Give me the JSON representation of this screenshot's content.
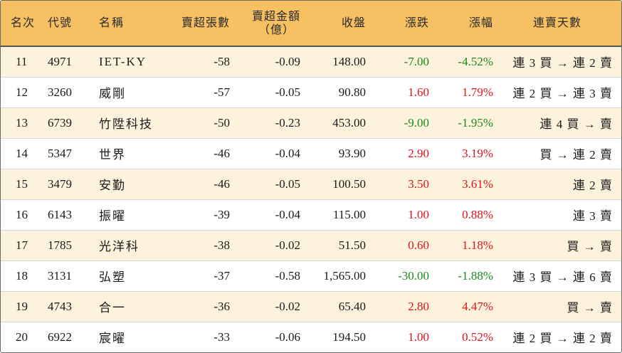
{
  "headers": {
    "rank": "名次",
    "code": "代號",
    "name": "名稱",
    "net_sell_lots": "賣超張數",
    "net_sell_amount_line1": "賣超金額",
    "net_sell_amount_line2": "（億）",
    "close": "收盤",
    "change": "漲跌",
    "change_pct": "漲幅",
    "streak": "連賣天數"
  },
  "colors": {
    "header_bg": "#f7c163",
    "row_alt_bg": "#fdf3dc",
    "up": "#e0141e",
    "down": "#1a8a1a"
  },
  "rows": [
    {
      "rank": "11",
      "code": "4971",
      "name": "IET-KY",
      "lots": "-58",
      "amount": "-0.09",
      "close": "148.00",
      "change": "-7.00",
      "pct": "-4.52%",
      "streak": "連 3 買 → 連 2 賣",
      "dir": "down"
    },
    {
      "rank": "12",
      "code": "3260",
      "name": "威剛",
      "lots": "-57",
      "amount": "-0.05",
      "close": "90.80",
      "change": "1.60",
      "pct": "1.79%",
      "streak": "連 2 買 → 連 3 賣",
      "dir": "up"
    },
    {
      "rank": "13",
      "code": "6739",
      "name": "竹陞科技",
      "lots": "-50",
      "amount": "-0.23",
      "close": "453.00",
      "change": "-9.00",
      "pct": "-1.95%",
      "streak": "連 4 買 → 賣",
      "dir": "down"
    },
    {
      "rank": "14",
      "code": "5347",
      "name": "世界",
      "lots": "-46",
      "amount": "-0.04",
      "close": "93.90",
      "change": "2.90",
      "pct": "3.19%",
      "streak": "買 → 連 2 賣",
      "dir": "up"
    },
    {
      "rank": "15",
      "code": "3479",
      "name": "安勤",
      "lots": "-46",
      "amount": "-0.05",
      "close": "100.50",
      "change": "3.50",
      "pct": "3.61%",
      "streak": "連 2 賣",
      "dir": "up"
    },
    {
      "rank": "16",
      "code": "6143",
      "name": "振曜",
      "lots": "-39",
      "amount": "-0.04",
      "close": "115.00",
      "change": "1.00",
      "pct": "0.88%",
      "streak": "連 3 賣",
      "dir": "up"
    },
    {
      "rank": "17",
      "code": "1785",
      "name": "光洋科",
      "lots": "-38",
      "amount": "-0.02",
      "close": "51.50",
      "change": "0.60",
      "pct": "1.18%",
      "streak": "買 → 賣",
      "dir": "up"
    },
    {
      "rank": "18",
      "code": "3131",
      "name": "弘塑",
      "lots": "-37",
      "amount": "-0.58",
      "close": "1,565.00",
      "change": "-30.00",
      "pct": "-1.88%",
      "streak": "連 3 買 → 連 6 賣",
      "dir": "down"
    },
    {
      "rank": "19",
      "code": "4743",
      "name": "合一",
      "lots": "-36",
      "amount": "-0.02",
      "close": "65.40",
      "change": "2.80",
      "pct": "4.47%",
      "streak": "買 → 賣",
      "dir": "up"
    },
    {
      "rank": "20",
      "code": "6922",
      "name": "宸曜",
      "lots": "-33",
      "amount": "-0.06",
      "close": "194.50",
      "change": "1.00",
      "pct": "0.52%",
      "streak": "連 2 買 → 連 2 賣",
      "dir": "up"
    }
  ]
}
